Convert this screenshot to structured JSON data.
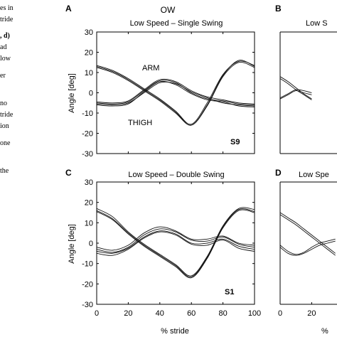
{
  "left_text": {
    "lines": [
      "es in",
      "tride",
      ", d)",
      "ad",
      "low",
      "er",
      "no",
      "tride",
      "ion",
      "one",
      "the"
    ]
  },
  "chart_data": [
    {
      "type": "line",
      "panel_letter": "A",
      "group_title": "OW",
      "title": "Low Speed – Single Swing",
      "subject": "S9",
      "xlabel": "",
      "ylabel": "Angle [deg]",
      "xlim": [
        0,
        100
      ],
      "ylim": [
        -30,
        30
      ],
      "yticks": [
        30,
        20,
        10,
        0,
        -10,
        -20,
        -30
      ],
      "xticks": [],
      "annotations": [
        "ARM",
        "THIGH"
      ],
      "x": [
        0,
        10,
        20,
        30,
        40,
        50,
        60,
        70,
        80,
        90,
        100
      ],
      "series": [
        {
          "values": [
            13.5,
            11,
            7,
            2,
            -3,
            -9,
            -15.5,
            -5,
            9,
            15.5,
            13.5
          ]
        },
        {
          "values": [
            13,
            10.5,
            6.5,
            1.5,
            -3.5,
            -9.5,
            -16,
            -6,
            8.5,
            16,
            13
          ]
        },
        {
          "values": [
            12.5,
            10,
            6,
            1,
            -4,
            -10,
            -16,
            -6.5,
            8,
            15,
            12.5
          ]
        },
        {
          "values": [
            -5,
            -5.5,
            -4.5,
            1,
            6,
            5,
            0,
            -3,
            -4,
            -5.5,
            -6
          ]
        },
        {
          "values": [
            -5.5,
            -6,
            -5,
            0,
            5,
            4.5,
            0.5,
            -2.5,
            -5,
            -6,
            -6.5
          ]
        },
        {
          "values": [
            -4.5,
            -5,
            -4,
            1.5,
            6.5,
            5.5,
            1,
            -2,
            -3.5,
            -5,
            -5.5
          ]
        },
        {
          "values": [
            -6,
            -6.5,
            -5.5,
            0.5,
            5.5,
            4,
            -0.5,
            -3.5,
            -4.5,
            -6.5,
            -7
          ]
        }
      ]
    },
    {
      "type": "line",
      "panel_letter": "B",
      "group_title": "",
      "title": "Low S",
      "subject": "",
      "xlabel": "",
      "ylabel": "",
      "xlim": [
        0,
        20
      ],
      "ylim": [
        -30,
        30
      ],
      "yticks": [],
      "xticks": [],
      "annotations": [],
      "x": [
        0,
        5,
        10,
        15,
        20
      ],
      "series": [
        {
          "values": [
            8,
            5.5,
            2.5,
            -0.5,
            -3
          ]
        },
        {
          "values": [
            7,
            4.5,
            1.5,
            -1,
            -3.5
          ]
        },
        {
          "values": [
            -3,
            -1,
            1,
            0,
            -1
          ]
        },
        {
          "values": [
            -2.5,
            -0.5,
            1.5,
            1,
            0
          ]
        }
      ]
    },
    {
      "type": "line",
      "panel_letter": "C",
      "group_title": "",
      "title": "Low Speed – Double Swing",
      "subject": "S1",
      "xlabel": "",
      "ylabel": "Angle [deg]",
      "xlim": [
        0,
        100
      ],
      "ylim": [
        -30,
        30
      ],
      "yticks": [
        30,
        20,
        10,
        0,
        -10,
        -20,
        -30
      ],
      "xticks": [
        0,
        20,
        40,
        60,
        80,
        100
      ],
      "annotations": [],
      "x": [
        0,
        10,
        20,
        30,
        40,
        50,
        60,
        70,
        80,
        90,
        100
      ],
      "series": [
        {
          "values": [
            16,
            12,
            5,
            -1,
            -6,
            -11,
            -16.5,
            -7,
            8,
            16.5,
            15.5
          ]
        },
        {
          "values": [
            15.5,
            11.5,
            4.5,
            -1.5,
            -6.5,
            -11.5,
            -17,
            -7.5,
            7.5,
            16,
            15
          ]
        },
        {
          "values": [
            17,
            13,
            5.5,
            -0.5,
            -5.5,
            -10.5,
            -16,
            -6.5,
            8.5,
            17,
            16.5
          ]
        },
        {
          "values": [
            -3,
            -4.5,
            -2,
            4,
            7,
            5.5,
            1.5,
            1,
            3,
            -0.5,
            -2
          ]
        },
        {
          "values": [
            -4,
            -5,
            -2.5,
            3,
            6,
            4.5,
            0,
            0,
            2,
            -1.5,
            -3
          ]
        },
        {
          "values": [
            -2,
            -3.5,
            -1,
            5,
            8,
            6,
            2,
            2,
            3.5,
            0,
            -1
          ]
        },
        {
          "values": [
            -5,
            -6,
            -3,
            2.5,
            5.5,
            4,
            -0.5,
            -1,
            1.5,
            -2.5,
            -4
          ]
        }
      ]
    },
    {
      "type": "line",
      "panel_letter": "D",
      "group_title": "",
      "title": "Low Spe",
      "subject": "",
      "xlabel": "",
      "ylabel": "",
      "xlim": [
        0,
        35
      ],
      "ylim": [
        -30,
        30
      ],
      "yticks": [],
      "xticks": [
        0,
        20
      ],
      "annotations": [],
      "x": [
        0,
        5,
        10,
        15,
        20,
        25,
        30,
        35
      ],
      "series": [
        {
          "values": [
            15,
            12.5,
            10,
            7,
            4,
            1,
            -2,
            -5
          ]
        },
        {
          "values": [
            14,
            11.5,
            9,
            6,
            3,
            0,
            -3,
            -6
          ]
        },
        {
          "values": [
            -2,
            -5,
            -6,
            -5,
            -3,
            -1,
            0,
            1
          ]
        },
        {
          "values": [
            -1,
            -4,
            -5.5,
            -4.5,
            -2,
            0,
            1,
            2
          ]
        }
      ]
    }
  ],
  "shared": {
    "xlabel": "% stride",
    "xlabel_right_partial": "%"
  }
}
